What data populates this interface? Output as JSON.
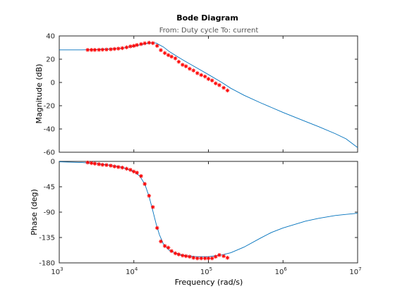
{
  "chart_data": {
    "type": "line",
    "title": "Bode Diagram",
    "subtitle": "From: Duty cycle  To: current",
    "xlabel": "Frequency  (rad/s)",
    "x_scale": "log",
    "xlim": [
      1000,
      10000000
    ],
    "x_ticks": [
      {
        "value": 1000,
        "base": "10",
        "exp": "3"
      },
      {
        "value": 10000,
        "base": "10",
        "exp": "4"
      },
      {
        "value": 100000,
        "base": "10",
        "exp": "5"
      },
      {
        "value": 1000000,
        "base": "10",
        "exp": "6"
      },
      {
        "value": 10000000,
        "base": "10",
        "exp": "7"
      }
    ],
    "colors": {
      "model": "#0072bd",
      "measured": "#ff0000"
    },
    "magnitude": {
      "ylabel": "Magnitude (dB)",
      "ylim": [
        -60,
        40
      ],
      "yticks": [
        "40",
        "20",
        "0",
        "-20",
        "-40",
        "-60"
      ],
      "ytick_values": [
        40,
        20,
        0,
        -20,
        -40,
        -60
      ],
      "model": {
        "x": [
          1000,
          2000,
          3000,
          5000,
          7000,
          10000,
          12000,
          15000,
          18000,
          20000,
          25000,
          30000,
          40000,
          50000,
          70000,
          100000,
          150000,
          200000,
          300000,
          500000,
          700000,
          1000000,
          2000000,
          3000000,
          5000000,
          7000000,
          10000000
        ],
        "y": [
          28,
          28,
          28.2,
          28.8,
          29.5,
          31,
          32.2,
          33.5,
          34.2,
          33.8,
          30.5,
          26.5,
          21.5,
          17.8,
          12.5,
          6.8,
          0.2,
          -5,
          -11,
          -17.5,
          -21.5,
          -25.8,
          -33.5,
          -38,
          -44,
          -48.5,
          -56
        ]
      },
      "measured": {
        "x": [
          2400,
          2700,
          3000,
          3400,
          3800,
          4300,
          4900,
          5500,
          6200,
          7000,
          8000,
          9000,
          10000,
          11000,
          12500,
          14000,
          16000,
          18000,
          20500,
          23000,
          26000,
          29000,
          32000,
          36000,
          40000,
          45000,
          50000,
          56000,
          63000,
          71000,
          80000,
          90000,
          100000,
          112000,
          125000,
          140000,
          160000,
          180000
        ],
        "y": [
          28,
          28,
          28,
          28.1,
          28.2,
          28.3,
          28.5,
          28.8,
          29.1,
          29.5,
          30.2,
          31,
          31.5,
          32.2,
          33,
          33.7,
          34.2,
          33.8,
          31.5,
          27.8,
          25.3,
          23.5,
          22.2,
          20.7,
          17.8,
          15.2,
          13.9,
          11.8,
          10.3,
          8,
          6.4,
          5.1,
          3,
          1.7,
          -0.8,
          -2.3,
          -4.6,
          -6.9
        ]
      }
    },
    "phase": {
      "ylabel": "Phase (deg)",
      "ylim": [
        -180,
        0
      ],
      "yticks": [
        "0",
        "-45",
        "-90",
        "-135",
        "-180"
      ],
      "ytick_values": [
        0,
        -45,
        -90,
        -135,
        -180
      ],
      "model": {
        "x": [
          1000,
          2000,
          3000,
          5000,
          7000,
          10000,
          12000,
          14000,
          16000,
          18000,
          20000,
          22000,
          25000,
          30000,
          40000,
          50000,
          70000,
          100000,
          150000,
          200000,
          300000,
          500000,
          700000,
          1000000,
          2000000,
          3000000,
          5000000,
          7000000,
          10000000
        ],
        "y": [
          -0.7,
          -2,
          -3.5,
          -7,
          -10.5,
          -18,
          -26,
          -40,
          -62,
          -88,
          -112,
          -130,
          -147,
          -158,
          -165,
          -167.5,
          -169,
          -169,
          -166,
          -162,
          -152,
          -136,
          -126,
          -118,
          -106,
          -101,
          -96,
          -94,
          -92
        ]
      },
      "measured": {
        "x": [
          2400,
          2700,
          3000,
          3400,
          3800,
          4300,
          4900,
          5500,
          6200,
          7000,
          8000,
          9000,
          10000,
          11000,
          12500,
          14000,
          16000,
          18000,
          20500,
          23000,
          26000,
          29000,
          32000,
          36000,
          40000,
          45000,
          50000,
          56000,
          63000,
          71000,
          80000,
          90000,
          100000,
          112000,
          125000,
          140000,
          160000,
          180000
        ],
        "y": [
          -2,
          -3,
          -4,
          -5,
          -6,
          -6.5,
          -7.5,
          -9,
          -10,
          -11,
          -13,
          -15,
          -18,
          -20,
          -26,
          -40,
          -61,
          -81,
          -118,
          -142,
          -150,
          -153,
          -159,
          -163,
          -165,
          -167,
          -168,
          -169,
          -171,
          -172,
          -172,
          -172,
          -172,
          -172,
          -169,
          -166,
          -168,
          -171
        ]
      }
    }
  }
}
